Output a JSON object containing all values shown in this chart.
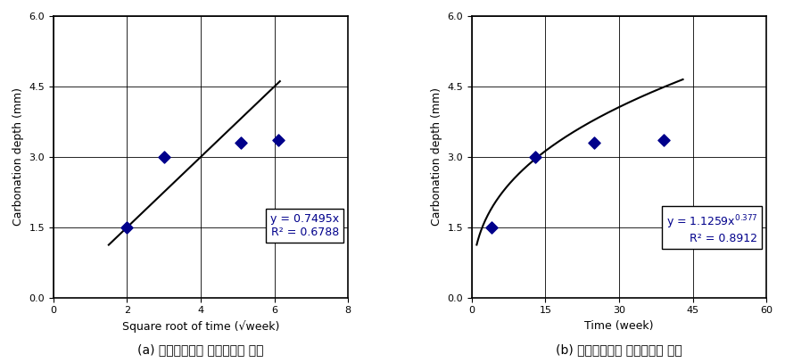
{
  "plot_a": {
    "scatter_x": [
      2.0,
      3.0,
      5.1,
      6.1
    ],
    "scatter_y": [
      1.5,
      3.0,
      3.3,
      3.35
    ],
    "line_slope": 0.7495,
    "line_x_start": 1.5,
    "line_x_end": 6.15,
    "xlabel": "Square root of time (√week)",
    "ylabel": "Carbonation depth (mm)",
    "xlim": [
      0,
      8
    ],
    "ylim": [
      0,
      6
    ],
    "xticks": [
      0,
      2,
      4,
      6,
      8
    ],
    "yticks": [
      0,
      1.5,
      3,
      4.5,
      6
    ],
    "eq_line1": "y = 0.7495x",
    "eq_line2": "R² = 0.6788",
    "caption": "(a) 기존모델식과 실측데이터 비교"
  },
  "plot_b": {
    "scatter_x": [
      4,
      13,
      25,
      39
    ],
    "scatter_y": [
      1.5,
      3.0,
      3.3,
      3.35
    ],
    "coeff": 1.1259,
    "exponent": 0.377,
    "curve_x_start": 1.0,
    "curve_x_end": 43,
    "xlabel": "Time (week)",
    "ylabel": "Carbonation depth (mm)",
    "xlim": [
      0,
      60
    ],
    "ylim": [
      0,
      6
    ],
    "xticks": [
      0,
      15,
      30,
      45,
      60
    ],
    "yticks": [
      0,
      1.5,
      3,
      4.5,
      6
    ],
    "eq_line1": "y = 1.1259x",
    "exp_text": "0.377",
    "eq_line2": "R² = 0.8912",
    "caption": "(b) 제안모델식과 실측데이터 비교"
  },
  "marker_color": "#00008B",
  "line_color": "#000000",
  "equation_color": "#00008B",
  "bg_color": "#ffffff",
  "eq_fontsize": 9,
  "axis_fontsize": 9,
  "tick_fontsize": 8,
  "caption_fontsize": 10
}
